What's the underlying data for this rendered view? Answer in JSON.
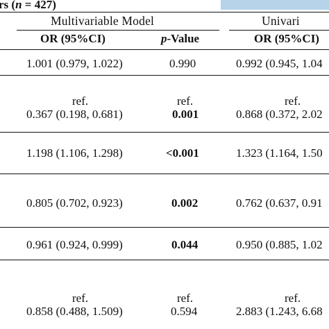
{
  "table": {
    "subtitle_prefix": "rs (",
    "subtitle_n": "n",
    "subtitle_suffix": " = 427)",
    "left_fragment": ")",
    "groups": {
      "multivariable": "Multivariable Model",
      "univariable": "Univari"
    },
    "headers": {
      "or_ci_1": "OR (95%CI)",
      "p_italic": "p",
      "p_rest": "-Value",
      "or_ci_2": "OR (95%CI)"
    },
    "rows": [
      {
        "ref1": "",
        "or_multi": "1.001 (0.979, 1.022)",
        "ref2": "",
        "p": "0.990",
        "p_bold": false,
        "or_uni": "0.992 (0.945, 1.04"
      },
      {
        "ref1": "ref.",
        "or_multi": "0.367 (0.198, 0.681)",
        "ref2": "ref.",
        "p": "0.001",
        "p_bold": true,
        "ref3": "ref.",
        "or_uni": "0.868 (0.372, 2.02"
      },
      {
        "or_multi": "1.198 (1.106, 1.298)",
        "p": "<0.001",
        "p_bold": true,
        "or_uni": "1.323 (1.164, 1.50"
      },
      {
        "or_multi": "0.805 (0.702, 0.923)",
        "p": "0.002",
        "p_bold": true,
        "or_uni": "0.762 (0.637, 0.91"
      },
      {
        "or_multi": "0.961 (0.924, 0.999)",
        "p": "0.044",
        "p_bold": true,
        "or_uni": "0.950 (0.885, 1.02"
      },
      {
        "ref1": "ref.",
        "or_multi": "0.858 (0.488, 1.509)",
        "ref2": "ref.",
        "p": "0.594",
        "p_bold": false,
        "ref3": "ref.",
        "or_uni": "2.883 (1.243, 6.68"
      }
    ]
  }
}
